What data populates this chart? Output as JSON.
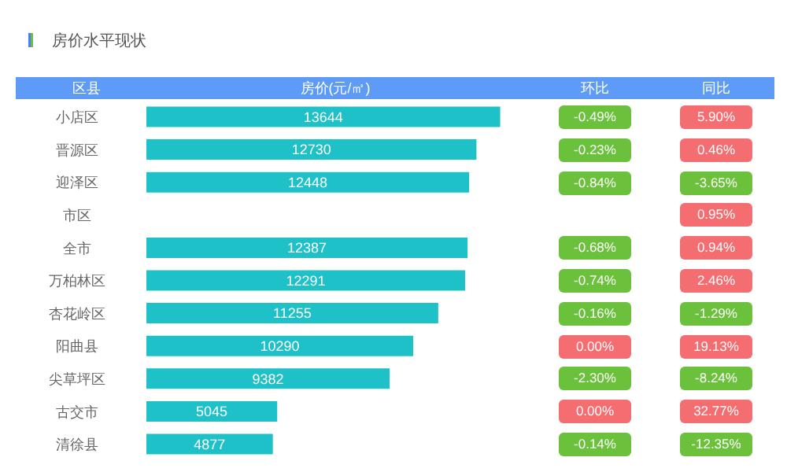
{
  "chart_data": [
    {
      "type": "bar",
      "orientation": "horizontal",
      "title": "房价水平现状",
      "ylabel": "区县",
      "xlabel": "房价(元/㎡)",
      "categories": [
        "小店区",
        "晋源区",
        "迎泽区",
        "市区",
        "全市",
        "万柏林区",
        "杏花岭区",
        "阳曲县",
        "尖草坪区",
        "古交市",
        "清徐县"
      ],
      "values": [
        13644,
        12730,
        12448,
        null,
        12387,
        12291,
        11255,
        10290,
        9382,
        5045,
        4877
      ],
      "color": "#1fc1c8",
      "data_labels": true
    },
    {
      "type": "heatmap",
      "categories": [
        "环比",
        "同比"
      ],
      "y_categories": [
        null,
        null,
        null,
        null,
        null,
        null,
        null,
        null,
        null,
        null,
        null
      ],
      "colors": [
        "#6cc13c",
        "#f46d70"
      ],
      "cells": [
        [
          -0.49,
          5.9
        ],
        [
          -0.23,
          0.46
        ],
        [
          -0.84,
          -3.65
        ],
        [
          null,
          0.95
        ],
        [
          -0.68,
          0.94
        ],
        [
          -0.74,
          2.46
        ],
        [
          -0.16,
          -1.29
        ],
        [
          0,
          19.13
        ],
        [
          -2.3,
          -8.24
        ],
        [
          0,
          32.77
        ],
        [
          -0.14,
          -12.35
        ]
      ],
      "cell_labels": [
        [
          "-0.49%",
          "5.90%"
        ],
        [
          "-0.23%",
          "0.46%"
        ],
        [
          "-0.84%",
          "-3.65%"
        ],
        [
          null,
          "0.95%"
        ],
        [
          "-0.68%",
          "0.94%"
        ],
        [
          "-0.74%",
          "2.46%"
        ],
        [
          "-0.16%",
          "-1.29%"
        ],
        [
          "0.00%",
          "19.13%"
        ],
        [
          "-2.30%",
          "-8.24%"
        ],
        [
          "0.00%",
          "32.77%"
        ],
        [
          "-0.14%",
          "-12.35%"
        ]
      ]
    }
  ]
}
